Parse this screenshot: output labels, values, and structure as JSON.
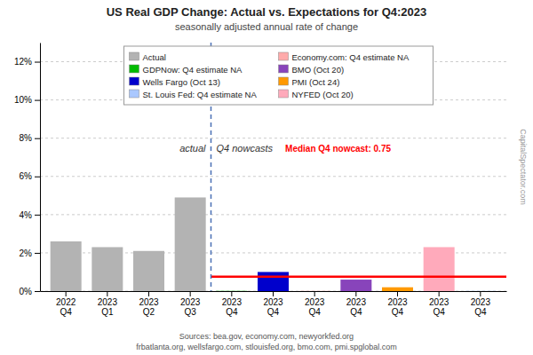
{
  "chart_data": {
    "type": "bar",
    "title": "US Real GDP Change: Actual vs. Expectations for Q4:2023",
    "subtitle": "seasonally adjusted annual rate of change",
    "categories": [
      "2022\nQ4",
      "2023\nQ1",
      "2023\nQ2",
      "2023\nQ3",
      "2023\nQ4",
      "2023\nQ4",
      "2023\nQ4",
      "2023\nQ4",
      "2023\nQ4",
      "2023\nQ4",
      "2023\nQ4"
    ],
    "series": [
      {
        "name": "Actual",
        "color": "#b3b3b3",
        "values": [
          2.6,
          2.3,
          2.1,
          4.9,
          null,
          null,
          null,
          null,
          null,
          null,
          null
        ]
      },
      {
        "name": "Economy.com: Q4 estimate NA",
        "color": "#ffaaaa",
        "values": [
          null,
          null,
          null,
          null,
          null,
          null,
          0.01,
          null,
          null,
          null,
          null
        ]
      },
      {
        "name": "GDPNow: Q4 estimate NA",
        "color": "#00bb00",
        "values": [
          null,
          null,
          null,
          null,
          0.01,
          null,
          null,
          null,
          null,
          null,
          null
        ]
      },
      {
        "name": "BMO (Oct 20)",
        "color": "#8844bb",
        "values": [
          null,
          null,
          null,
          null,
          null,
          null,
          null,
          0.6,
          null,
          null,
          null
        ]
      },
      {
        "name": "Wells Fargo (Oct 13)",
        "color": "#0000cc",
        "values": [
          null,
          null,
          null,
          null,
          null,
          1.0,
          null,
          null,
          null,
          null,
          null
        ]
      },
      {
        "name": "PMI (Oct 24)",
        "color": "#ff9900",
        "values": [
          null,
          null,
          null,
          null,
          null,
          null,
          null,
          null,
          0.2,
          null,
          null
        ]
      },
      {
        "name": "St. Louis Fed: Q4 estimate NA",
        "color": "#aac8ff",
        "values": [
          null,
          null,
          null,
          null,
          null,
          null,
          null,
          null,
          null,
          null,
          0.01
        ]
      },
      {
        "name": "NYFED (Oct 20)",
        "color": "#ffaabb",
        "values": [
          null,
          null,
          null,
          null,
          null,
          null,
          null,
          null,
          null,
          2.3,
          null
        ]
      }
    ],
    "stacked": true,
    "ylim": [
      0,
      13.0
    ],
    "yticks": [
      {
        "value": 0,
        "label": "0%"
      },
      {
        "value": 2,
        "label": "2%"
      },
      {
        "value": 4,
        "label": "4%"
      },
      {
        "value": 6,
        "label": "6%"
      },
      {
        "value": 8,
        "label": "8%"
      },
      {
        "value": 10,
        "label": "10%"
      },
      {
        "value": 12,
        "label": "12%"
      }
    ],
    "grid": true,
    "legend": "upper left",
    "annotations": [
      "actual",
      "Q4 nowcasts"
    ],
    "reference_line": {
      "value": 0.75,
      "label": "Median Q4 nowcast: 0.75",
      "color": "red"
    },
    "watermark": "CapitalSpectator.com",
    "sources": [
      "Sources: bea.gov, economy.com, newyorkfed.org",
      "frbatlanta.org, wellsfargo.com, stlouisfed.org, bmo.com, pmi.spglobal.com"
    ]
  }
}
